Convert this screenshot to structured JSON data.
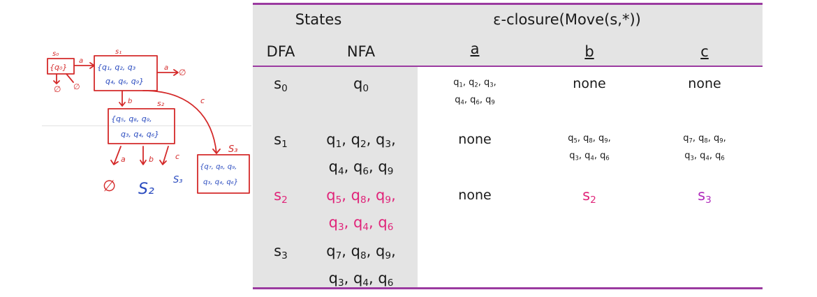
{
  "table": {
    "header": {
      "states": "States",
      "closure": "ε-closure(Move(s,*))",
      "dfa": "DFA",
      "nfa": "NFA",
      "cols": [
        "a",
        "b",
        "c"
      ]
    },
    "rows": [
      {
        "dfa": {
          "base": "s",
          "sub": "0"
        },
        "nfa_lines": [
          [
            {
              "b": "q",
              "s": "0"
            }
          ]
        ],
        "a_lines": [
          [
            {
              "b": "q",
              "s": "1"
            },
            {
              "b": "q",
              "s": "2"
            },
            {
              "b": "q",
              "s": "3"
            }
          ],
          [
            {
              "b": "q",
              "s": "4"
            },
            {
              "b": "q",
              "s": "6"
            },
            {
              "b": "q",
              "s": "9"
            }
          ]
        ],
        "b_text": "none",
        "c_text": "none",
        "highlight": ""
      },
      {
        "dfa": {
          "base": "s",
          "sub": "1"
        },
        "nfa_lines": [
          [
            {
              "b": "q",
              "s": "1"
            },
            {
              "b": "q",
              "s": "2"
            },
            {
              "b": "q",
              "s": "3"
            }
          ],
          [
            {
              "b": "q",
              "s": "4"
            },
            {
              "b": "q",
              "s": "6"
            },
            {
              "b": "q",
              "s": "9"
            }
          ]
        ],
        "a_text": "none",
        "b_lines": [
          [
            {
              "b": "q",
              "s": "5"
            },
            {
              "b": "q",
              "s": "8"
            },
            {
              "b": "q",
              "s": "9"
            }
          ],
          [
            {
              "b": "q",
              "s": "3"
            },
            {
              "b": "q",
              "s": "4"
            },
            {
              "b": "q",
              "s": "6"
            }
          ]
        ],
        "c_lines": [
          [
            {
              "b": "q",
              "s": "7"
            },
            {
              "b": "q",
              "s": "8"
            },
            {
              "b": "q",
              "s": "9"
            }
          ],
          [
            {
              "b": "q",
              "s": "3"
            },
            {
              "b": "q",
              "s": "4"
            },
            {
              "b": "q",
              "s": "6"
            }
          ]
        ],
        "highlight": ""
      },
      {
        "dfa": {
          "base": "s",
          "sub": "2"
        },
        "nfa_lines": [
          [
            {
              "b": "q",
              "s": "5"
            },
            {
              "b": "q",
              "s": "8"
            },
            {
              "b": "q",
              "s": "9"
            }
          ],
          [
            {
              "b": "q",
              "s": "3"
            },
            {
              "b": "q",
              "s": "4"
            },
            {
              "b": "q",
              "s": "6"
            }
          ]
        ],
        "a_text": "none",
        "b_state": {
          "base": "s",
          "sub": "2"
        },
        "c_state": {
          "base": "s",
          "sub": "3"
        },
        "highlight": "#e0257a"
      },
      {
        "dfa": {
          "base": "s",
          "sub": "3"
        },
        "nfa_lines": [
          [
            {
              "b": "q",
              "s": "7"
            },
            {
              "b": "q",
              "s": "8"
            },
            {
              "b": "q",
              "s": "9"
            }
          ],
          [
            {
              "b": "q",
              "s": "3"
            },
            {
              "b": "q",
              "s": "4"
            },
            {
              "b": "q",
              "s": "6"
            }
          ]
        ],
        "highlight": ""
      }
    ]
  },
  "sketch": {
    "labels": {
      "s0": "s₀",
      "s1": "s₁",
      "s2": "s₂",
      "s3": "S₃",
      "box0": "{q₀}",
      "box1_l1": "{q₁, q₂, q₃",
      "box1_l2": "q₄, q₆, q₉}",
      "box2_l1": "{q₅, q₈, q₉,",
      "box2_l2": "q₃, q₄, q₆}",
      "box3_l1": "{q₇, q₈, q₉,",
      "box3_l2": "q₃, q₄, q₆}",
      "edge_a": "a",
      "edge_b": "b",
      "edge_c": "c",
      "empty": "∅",
      "result_s2": "S₂",
      "result_s3": "S₃"
    }
  },
  "colors": {
    "rule": "#9b3aa0",
    "header_bg": "#e4e4e4",
    "pink": "#e0257a",
    "violet": "#b02bbc",
    "ink_red": "#d42a2a",
    "ink_blue": "#2a4bbf"
  }
}
